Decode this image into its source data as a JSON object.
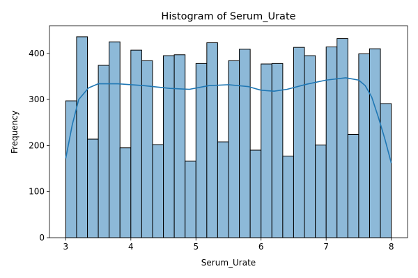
{
  "chart_data": {
    "type": "bar",
    "title": "Histogram of Serum_Urate",
    "xlabel": "Serum_Urate",
    "ylabel": "Frequency",
    "xlim": [
      2.75,
      8.25
    ],
    "ylim": [
      0,
      460
    ],
    "xticks": [
      3,
      4,
      5,
      6,
      7,
      8
    ],
    "yticks": [
      0,
      100,
      200,
      300,
      400
    ],
    "grid": false,
    "legend": "none",
    "bin_edges": [
      3.0,
      3.1667,
      3.3333,
      3.5,
      3.6667,
      3.8333,
      4.0,
      4.1667,
      4.3333,
      4.5,
      4.6667,
      4.8333,
      5.0,
      5.1667,
      5.3333,
      5.5,
      5.6667,
      5.8333,
      6.0,
      6.1667,
      6.3333,
      6.5,
      6.6667,
      6.8333,
      7.0,
      7.1667,
      7.3333,
      7.5,
      7.6667,
      7.8333,
      8.0
    ],
    "counts": [
      297,
      436,
      214,
      374,
      425,
      195,
      407,
      384,
      202,
      395,
      397,
      166,
      378,
      423,
      208,
      384,
      409,
      190,
      377,
      378,
      177,
      413,
      395,
      201,
      414,
      432,
      224,
      399,
      410,
      291
    ],
    "kde": {
      "x": [
        3.0,
        3.1,
        3.2,
        3.35,
        3.5,
        3.8,
        4.2,
        4.6,
        4.9,
        5.2,
        5.5,
        5.8,
        6.0,
        6.2,
        6.4,
        6.7,
        7.0,
        7.3,
        7.5,
        7.6,
        7.7,
        7.8,
        7.9,
        8.0
      ],
      "y": [
        172,
        245,
        300,
        325,
        334,
        334,
        330,
        324,
        322,
        330,
        332,
        328,
        320,
        318,
        322,
        333,
        342,
        347,
        342,
        330,
        305,
        262,
        215,
        162
      ]
    },
    "colors": {
      "bar_fill": "#8db9d8",
      "bar_edge": "#000000",
      "kde_line": "#1f77b4"
    }
  }
}
